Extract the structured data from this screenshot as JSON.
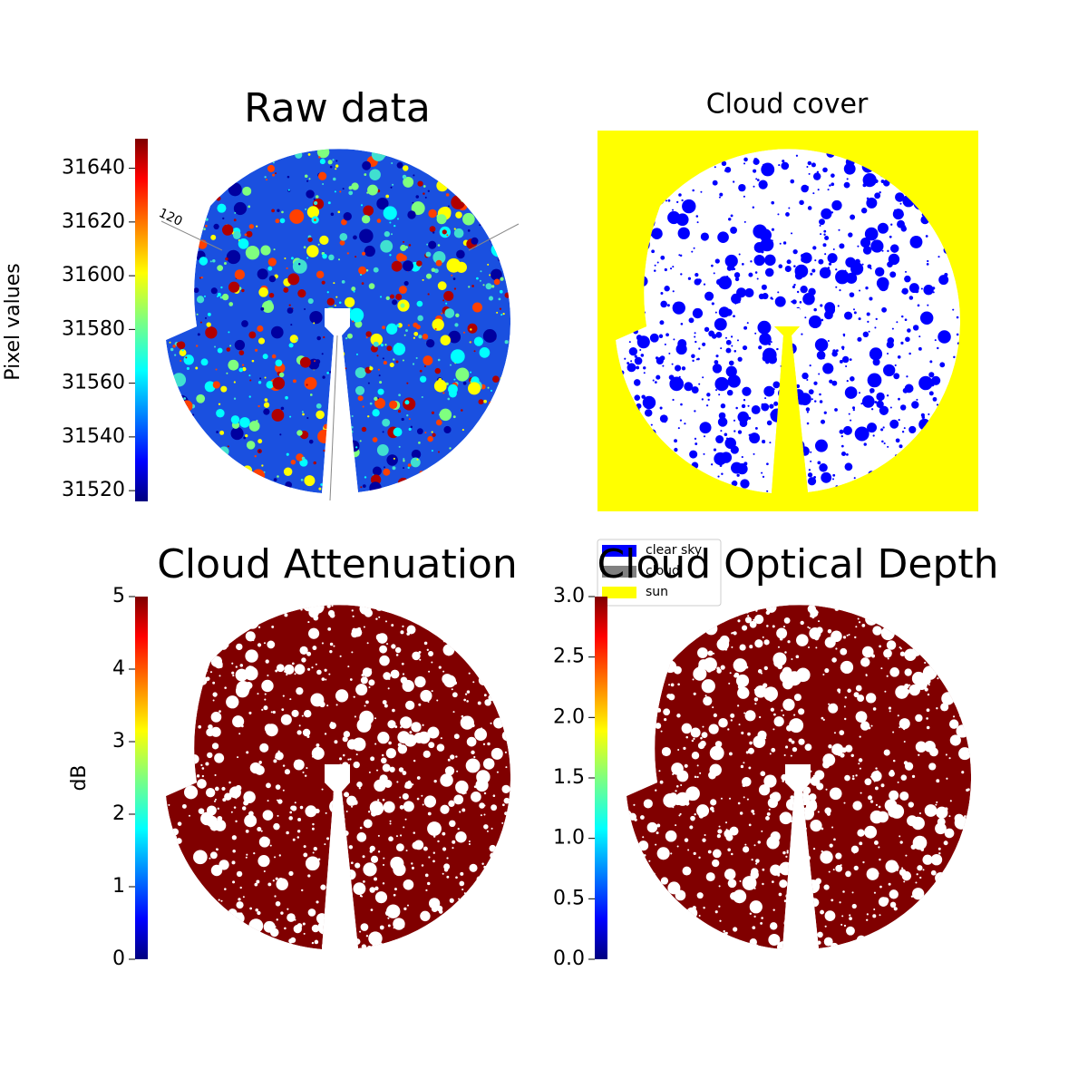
{
  "chart_data": [
    {
      "type": "image",
      "title": "Raw data",
      "colorbar_label": "Pixel values",
      "colormap": "jet",
      "ylim": [
        31516,
        31651
      ],
      "yticks": [
        31520,
        31540,
        31560,
        31580,
        31600,
        31620,
        31640
      ],
      "annotations": [
        "120"
      ]
    },
    {
      "type": "image",
      "title": "Cloud cover",
      "legend": [
        {
          "name": "clear sky",
          "color": "#0000ff"
        },
        {
          "name": "cloud",
          "color": "#808080"
        },
        {
          "name": "sun",
          "color": "#ffff00"
        }
      ]
    },
    {
      "type": "image",
      "title": "Cloud Attenuation",
      "colorbar_label": "dB",
      "colormap": "jet",
      "ylim": [
        0,
        5
      ],
      "yticks": [
        0,
        1,
        2,
        3,
        4,
        5
      ]
    },
    {
      "type": "image",
      "title": "Cloud Optical Depth",
      "colormap": "jet",
      "ylim": [
        0,
        3
      ],
      "yticks": [
        {
          "value": 0,
          "label": "0.0"
        },
        0.5,
        {
          "value": 1,
          "label": "1.0"
        },
        1.5,
        {
          "value": 2,
          "label": "2.0"
        },
        2.5,
        {
          "value": 3,
          "label": "3.0"
        }
      ]
    }
  ]
}
